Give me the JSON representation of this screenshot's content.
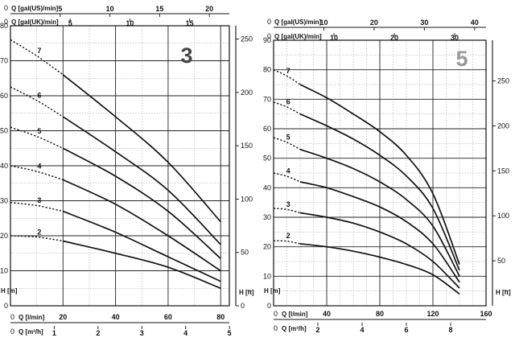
{
  "chart_data": [
    {
      "type": "line",
      "badge": "3",
      "badge_color": "#444444",
      "y_label": "H [m]",
      "y2_label": "H [ft]",
      "x_label": "Q [l/min]",
      "x_m3h_label": "Q [m³/h]",
      "x_usgal_label": "Q [gal(US)/min]",
      "x_ukgal_label": "Q [gal(UK)/min]",
      "axis_zero": "0",
      "xlim": [
        0,
        83.3
      ],
      "ylim": [
        0,
        80
      ],
      "x_ticks": [
        20,
        40,
        60,
        80
      ],
      "x_grid": 10,
      "y_ticks": [
        0,
        10,
        20,
        30,
        40,
        50,
        60,
        70,
        80
      ],
      "ft_ticks": [
        0,
        50,
        100,
        150,
        200,
        250
      ],
      "m3h_ticks": [
        1,
        2,
        3,
        4,
        5
      ],
      "usgal_ticks": [
        5,
        10,
        15,
        20
      ],
      "ukgal_ticks": [
        5,
        10,
        15
      ],
      "usgal_factor": 3.785,
      "ukgal_factor": 4.546,
      "grid": true,
      "series": [
        {
          "name": "2",
          "points": [
            [
              20,
              18.5
            ],
            [
              40,
              15
            ],
            [
              60,
              11
            ],
            [
              80,
              5
            ]
          ],
          "shutoff": 20
        },
        {
          "name": "3",
          "points": [
            [
              20,
              27
            ],
            [
              40,
              21
            ],
            [
              60,
              14
            ],
            [
              80,
              7
            ]
          ],
          "shutoff": 29.5
        },
        {
          "name": "4",
          "points": [
            [
              20,
              36
            ],
            [
              40,
              29
            ],
            [
              60,
              20
            ],
            [
              80,
              10
            ]
          ],
          "shutoff": 40
        },
        {
          "name": "5",
          "points": [
            [
              20,
              45
            ],
            [
              40,
              37
            ],
            [
              60,
              27
            ],
            [
              80,
              13.5
            ]
          ],
          "shutoff": 51
        },
        {
          "name": "6",
          "points": [
            [
              20,
              54
            ],
            [
              40,
              44
            ],
            [
              60,
              33
            ],
            [
              80,
              17.5
            ]
          ],
          "shutoff": 62.5
        },
        {
          "name": "7",
          "points": [
            [
              20,
              66
            ],
            [
              40,
              54
            ],
            [
              60,
              41
            ],
            [
              80,
              24
            ]
          ],
          "shutoff": 76
        }
      ]
    },
    {
      "type": "line",
      "badge": "5",
      "badge_color": "#9a9a9a",
      "y_label": "H [m]",
      "y2_label": "H [ft]",
      "x_label": "Q [l/min]",
      "x_m3h_label": "Q [m³/h]",
      "x_usgal_label": "Q [gal(US)/min]",
      "x_ukgal_label": "Q [gal(UK)/min]",
      "axis_zero": "0",
      "xlim": [
        0,
        160
      ],
      "ylim": [
        0,
        90
      ],
      "x_ticks": [
        40,
        80,
        120,
        160
      ],
      "x_grid": 10,
      "y_ticks": [
        0,
        10,
        20,
        30,
        40,
        50,
        60,
        70,
        80,
        90
      ],
      "ft_ticks": [
        50,
        100,
        150,
        200,
        250
      ],
      "m3h_ticks": [
        2,
        4,
        6,
        8
      ],
      "usgal_ticks": [
        10,
        20,
        30,
        40
      ],
      "ukgal_ticks": [
        10,
        20,
        30
      ],
      "usgal_factor": 3.785,
      "ukgal_factor": 4.546,
      "grid": true,
      "series": [
        {
          "name": "2",
          "points": [
            [
              20,
              21
            ],
            [
              40,
              20
            ],
            [
              60,
              18.5
            ],
            [
              80,
              16.5
            ],
            [
              100,
              14
            ],
            [
              120,
              10.5
            ],
            [
              140,
              4
            ]
          ],
          "shutoff": 22
        },
        {
          "name": "3",
          "points": [
            [
              20,
              31.5
            ],
            [
              40,
              30
            ],
            [
              60,
              28
            ],
            [
              80,
              25
            ],
            [
              100,
              21
            ],
            [
              120,
              15
            ],
            [
              140,
              6
            ]
          ],
          "shutoff": 33
        },
        {
          "name": "4",
          "points": [
            [
              20,
              42
            ],
            [
              40,
              40
            ],
            [
              60,
              37
            ],
            [
              80,
              33.5
            ],
            [
              100,
              28.5
            ],
            [
              120,
              21
            ],
            [
              140,
              8
            ]
          ],
          "shutoff": 45
        },
        {
          "name": "5",
          "points": [
            [
              20,
              53
            ],
            [
              40,
              50
            ],
            [
              60,
              46.5
            ],
            [
              80,
              42
            ],
            [
              100,
              36
            ],
            [
              120,
              27
            ],
            [
              140,
              10
            ]
          ],
          "shutoff": 57
        },
        {
          "name": "6",
          "points": [
            [
              20,
              65
            ],
            [
              40,
              61
            ],
            [
              60,
              56.5
            ],
            [
              80,
              51
            ],
            [
              100,
              44
            ],
            [
              120,
              33
            ],
            [
              140,
              12
            ]
          ],
          "shutoff": 69
        },
        {
          "name": "7",
          "points": [
            [
              20,
              75
            ],
            [
              40,
              70.5
            ],
            [
              60,
              65
            ],
            [
              80,
              59
            ],
            [
              100,
              51
            ],
            [
              120,
              38
            ],
            [
              140,
              14
            ]
          ],
          "shutoff": 80
        }
      ]
    }
  ]
}
